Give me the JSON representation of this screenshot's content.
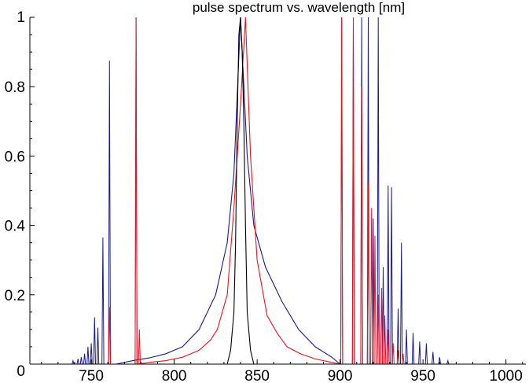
{
  "chart_data": {
    "type": "line",
    "title": "pulse spectrum vs. wavelength [nm]",
    "xlabel": "",
    "ylabel": "",
    "xlim": [
      713,
      1012
    ],
    "ylim": [
      0,
      1
    ],
    "grid": false,
    "legend": "none",
    "x_ticks": [
      {
        "value": 750,
        "label": "750"
      },
      {
        "value": 800,
        "label": "800"
      },
      {
        "value": 850,
        "label": "850"
      },
      {
        "value": 900,
        "label": "900"
      },
      {
        "value": 950,
        "label": "950"
      },
      {
        "value": 1000,
        "label": "1000"
      }
    ],
    "y_ticks": [
      {
        "value": 0,
        "label": "0"
      },
      {
        "value": 0.2,
        "label": "0.2"
      },
      {
        "value": 0.4,
        "label": "0.4"
      },
      {
        "value": 0.6,
        "label": "0.6"
      },
      {
        "value": 0.8,
        "label": "0.8"
      },
      {
        "value": 1,
        "label": "1"
      }
    ],
    "series": [
      {
        "color": "#1a1a8c",
        "broad_peak": {
          "center": 840,
          "height": 1.0
        },
        "x": [
          765,
          775,
          785,
          795,
          805,
          815,
          825,
          832,
          836,
          840,
          844,
          848,
          855,
          865,
          875,
          885,
          895,
          900
        ],
        "y": [
          0.0,
          0.01,
          0.018,
          0.03,
          0.05,
          0.1,
          0.2,
          0.35,
          0.55,
          1.0,
          0.6,
          0.4,
          0.28,
          0.18,
          0.1,
          0.05,
          0.02,
          0.0
        ],
        "spikes": [
          {
            "x": 739,
            "y": 0.01
          },
          {
            "x": 742,
            "y": 0.015
          },
          {
            "x": 744,
            "y": 0.02
          },
          {
            "x": 746,
            "y": 0.03
          },
          {
            "x": 748,
            "y": 0.05
          },
          {
            "x": 750,
            "y": 0.06
          },
          {
            "x": 752,
            "y": 0.135
          },
          {
            "x": 754,
            "y": 0.105
          },
          {
            "x": 757,
            "y": 0.365
          },
          {
            "x": 761,
            "y": 0.875
          },
          {
            "x": 777,
            "y": 1.0
          },
          {
            "x": 901,
            "y": 1.0
          },
          {
            "x": 908,
            "y": 1.0
          },
          {
            "x": 913,
            "y": 1.0
          },
          {
            "x": 917,
            "y": 1.0
          },
          {
            "x": 920,
            "y": 0.42
          },
          {
            "x": 923,
            "y": 1.0
          },
          {
            "x": 926,
            "y": 0.28
          },
          {
            "x": 929,
            "y": 0.515
          },
          {
            "x": 931,
            "y": 0.51
          },
          {
            "x": 935,
            "y": 0.16
          },
          {
            "x": 937,
            "y": 0.35
          },
          {
            "x": 940,
            "y": 0.1
          },
          {
            "x": 944,
            "y": 0.09
          },
          {
            "x": 948,
            "y": 0.065
          },
          {
            "x": 952,
            "y": 0.06
          },
          {
            "x": 956,
            "y": 0.035
          },
          {
            "x": 960,
            "y": 0.02
          },
          {
            "x": 965,
            "y": 0.01
          }
        ]
      },
      {
        "color": "#e8141e",
        "x": [
          778,
          785,
          795,
          805,
          815,
          822,
          826,
          832,
          836,
          840,
          843,
          846,
          850,
          856,
          862,
          868,
          876,
          885,
          895,
          900
        ],
        "y": [
          0.0,
          0.005,
          0.01,
          0.02,
          0.04,
          0.07,
          0.1,
          0.2,
          0.45,
          0.75,
          1.0,
          0.6,
          0.3,
          0.14,
          0.09,
          0.05,
          0.03,
          0.015,
          0.005,
          0.0
        ],
        "spikes": [
          {
            "x": 761,
            "y": 0.165
          },
          {
            "x": 777,
            "y": 1.0
          },
          {
            "x": 779,
            "y": 0.1
          },
          {
            "x": 901,
            "y": 1.0
          },
          {
            "x": 908,
            "y": 1.0
          },
          {
            "x": 913,
            "y": 0.8
          },
          {
            "x": 917,
            "y": 0.52
          },
          {
            "x": 919,
            "y": 0.45
          },
          {
            "x": 921,
            "y": 0.37
          },
          {
            "x": 923,
            "y": 0.2
          },
          {
            "x": 925,
            "y": 0.22
          },
          {
            "x": 927,
            "y": 0.14
          },
          {
            "x": 929,
            "y": 0.1
          },
          {
            "x": 932,
            "y": 0.06
          },
          {
            "x": 935,
            "y": 0.04
          },
          {
            "x": 938,
            "y": 0.03
          }
        ]
      },
      {
        "color": "#000000",
        "x": [
          832,
          834,
          836,
          837,
          838,
          839,
          840,
          841,
          842,
          843,
          844,
          846,
          848
        ],
        "y": [
          0.0,
          0.04,
          0.15,
          0.35,
          0.7,
          0.95,
          1.0,
          0.9,
          0.7,
          0.4,
          0.15,
          0.04,
          0.0
        ]
      }
    ]
  }
}
